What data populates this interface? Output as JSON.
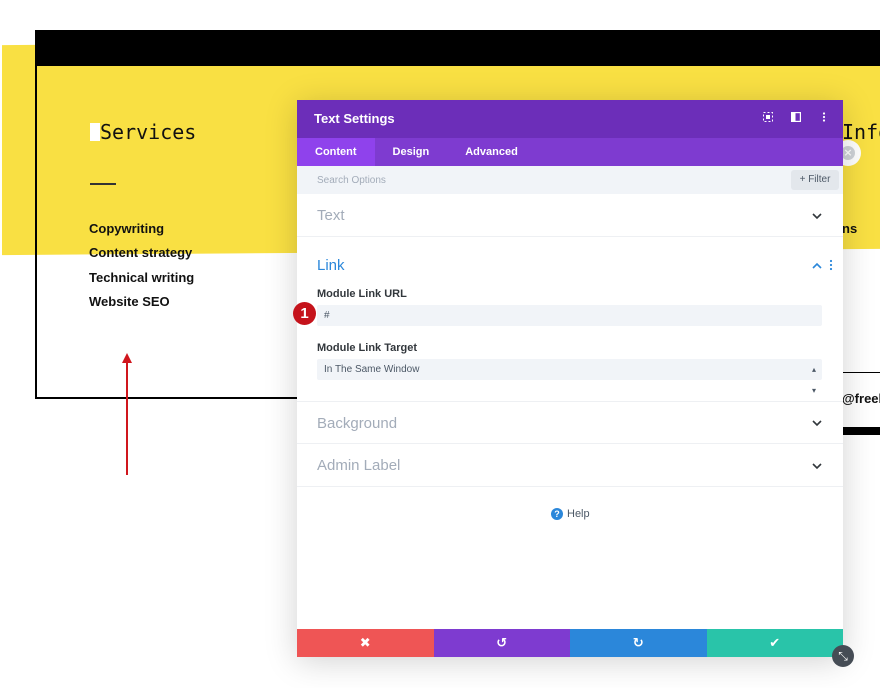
{
  "page": {
    "services_heading": "Services",
    "info_heading_fragment": "Info",
    "services": [
      "Copywriting",
      "Content strategy",
      "Technical writing",
      "Website SEO"
    ],
    "right_text_fragment_1": "ns",
    "right_text_fragment_2": "@freel"
  },
  "modal": {
    "title": "Text Settings",
    "header_icons": [
      "screenshot-icon",
      "split-view-icon",
      "kebab-menu-icon"
    ],
    "tabs": [
      {
        "label": "Content",
        "active": true
      },
      {
        "label": "Design",
        "active": false
      },
      {
        "label": "Advanced",
        "active": false
      }
    ],
    "search": {
      "placeholder": "Search Options",
      "filter_label": "Filter",
      "filter_icon": "+"
    },
    "sections": {
      "text": {
        "title": "Text",
        "expanded": false
      },
      "link": {
        "title": "Link",
        "expanded": true,
        "url_label": "Module Link URL",
        "url_value": "#",
        "target_label": "Module Link Target",
        "target_value": "In The Same Window"
      },
      "background": {
        "title": "Background",
        "expanded": false
      },
      "admin_label": {
        "title": "Admin Label",
        "expanded": false
      }
    },
    "help_label": "Help",
    "footer": {
      "cancel_icon": "✖",
      "undo_icon": "↺",
      "redo_icon": "↻",
      "save_icon": "✔"
    }
  },
  "annotation": {
    "step_number": "1"
  },
  "colors": {
    "yellow": "#f9e043",
    "header_purple": "#6c2eb9",
    "tab_purple": "#7e3bd0",
    "link_blue": "#2b87da",
    "cancel_red": "#ef5555",
    "save_green": "#29c4a9",
    "badge_red": "#c5131b"
  }
}
